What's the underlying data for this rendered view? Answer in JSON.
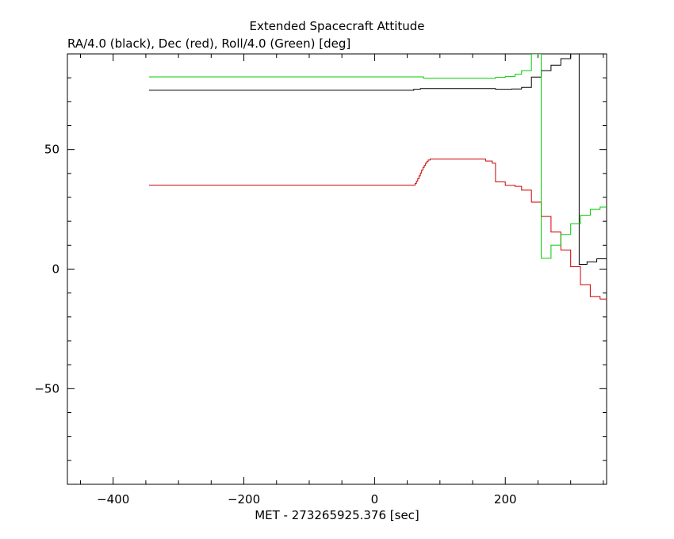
{
  "chart_data": {
    "type": "line",
    "title": "Extended Spacecraft Attitude",
    "subtitle": "RA/4.0 (black), Dec (red), Roll/4.0 (Green) [deg]",
    "xlabel": "MET - 273265925.376 [sec]",
    "ylabel": "",
    "xlim": [
      -470,
      355
    ],
    "ylim": [
      -90,
      90
    ],
    "x_ticks": [
      -400,
      -200,
      0,
      200
    ],
    "y_ticks": [
      -50,
      0,
      50
    ],
    "grid": false,
    "step": true,
    "series": [
      {
        "color": "#000000",
        "points": [
          [
            -345,
            74.8
          ],
          [
            60,
            75.2
          ],
          [
            70,
            75.5
          ],
          [
            180,
            75.5
          ],
          [
            185,
            75.2
          ],
          [
            210,
            75.3
          ],
          [
            225,
            76.0
          ],
          [
            240,
            80.3
          ],
          [
            255,
            83.0
          ],
          [
            270,
            85.3
          ],
          [
            285,
            88.0
          ],
          [
            300,
            90.0
          ],
          [
            313,
            90.0
          ],
          [
            313,
            2.0
          ],
          [
            325,
            3.0
          ],
          [
            340,
            4.3
          ],
          [
            355,
            4.3
          ]
        ]
      },
      {
        "color": "#cc0000",
        "points": [
          [
            -345,
            35.1
          ],
          [
            60,
            35.1
          ],
          [
            62,
            35.8
          ],
          [
            64,
            36.8
          ],
          [
            66,
            37.8
          ],
          [
            68,
            39.0
          ],
          [
            70,
            40.2
          ],
          [
            72,
            41.4
          ],
          [
            74,
            42.5
          ],
          [
            76,
            43.4
          ],
          [
            78,
            44.3
          ],
          [
            80,
            45.0
          ],
          [
            82,
            45.6
          ],
          [
            85,
            46.0
          ],
          [
            165,
            46.0
          ],
          [
            170,
            45.2
          ],
          [
            180,
            44.3
          ],
          [
            185,
            36.5
          ],
          [
            200,
            35.0
          ],
          [
            215,
            34.6
          ],
          [
            225,
            33.0
          ],
          [
            240,
            28.0
          ],
          [
            255,
            22.0
          ],
          [
            270,
            15.5
          ],
          [
            285,
            8.0
          ],
          [
            300,
            1.0
          ],
          [
            315,
            -6.5
          ],
          [
            330,
            -11.5
          ],
          [
            345,
            -12.5
          ],
          [
            355,
            -12.5
          ]
        ]
      },
      {
        "color": "#00cc00",
        "points": [
          [
            -345,
            80.4
          ],
          [
            70,
            80.4
          ],
          [
            75,
            79.8
          ],
          [
            180,
            79.8
          ],
          [
            185,
            80.2
          ],
          [
            200,
            80.6
          ],
          [
            215,
            81.5
          ],
          [
            225,
            83.0
          ],
          [
            240,
            90.0
          ],
          [
            255,
            90.0
          ],
          [
            255,
            4.5
          ],
          [
            270,
            10.0
          ],
          [
            285,
            14.5
          ],
          [
            300,
            19.0
          ],
          [
            315,
            22.5
          ],
          [
            330,
            25.0
          ],
          [
            345,
            26.0
          ],
          [
            355,
            26.0
          ]
        ]
      }
    ]
  }
}
